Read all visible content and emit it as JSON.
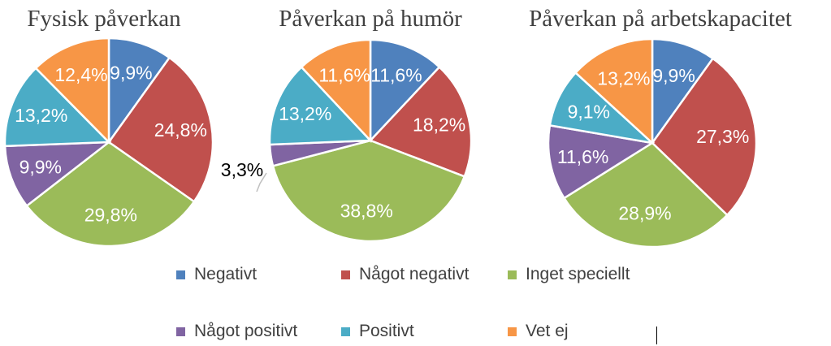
{
  "chart_data": [
    {
      "type": "pie",
      "title": "Fysisk påverkan",
      "categories": [
        "Negativt",
        "Något negativt",
        "Inget speciellt",
        "Något positivt",
        "Positivt",
        "Vet ej"
      ],
      "values": [
        9.9,
        24.8,
        29.8,
        9.9,
        13.2,
        12.4
      ],
      "labels": [
        "9,9%",
        "24,8%",
        "29,8%",
        "9,9%",
        "13,2%",
        "12,4%"
      ]
    },
    {
      "type": "pie",
      "title": "Påverkan på humör",
      "categories": [
        "Negativt",
        "Något negativt",
        "Inget speciellt",
        "Något positivt",
        "Positivt",
        "Vet ej"
      ],
      "values": [
        11.6,
        18.2,
        38.8,
        3.3,
        13.2,
        11.6
      ],
      "labels": [
        "11,6%",
        "18,2%",
        "38,8%",
        "3,3%",
        "13,2%",
        "11,6%"
      ]
    },
    {
      "type": "pie",
      "title": "Påverkan på arbetskapacitet",
      "categories": [
        "Negativt",
        "Något negativt",
        "Inget speciellt",
        "Något positivt",
        "Positivt",
        "Vet ej"
      ],
      "values": [
        9.9,
        27.3,
        28.9,
        11.6,
        9.1,
        13.2
      ],
      "labels": [
        "9,9%",
        "27,3%",
        "28,9%",
        "11,6%",
        "9,1%",
        "13,2%"
      ]
    }
  ],
  "legend": {
    "placement": "bottom",
    "items": [
      {
        "label": "Negativt",
        "color": "#4F81BD"
      },
      {
        "label": "Något negativt",
        "color": "#C0504D"
      },
      {
        "label": "Inget speciellt",
        "color": "#9BBB59"
      },
      {
        "label": "Något positivt",
        "color": "#8064A2"
      },
      {
        "label": "Positivt",
        "color": "#4BACC6"
      },
      {
        "label": "Vet ej",
        "color": "#F79646"
      }
    ]
  }
}
